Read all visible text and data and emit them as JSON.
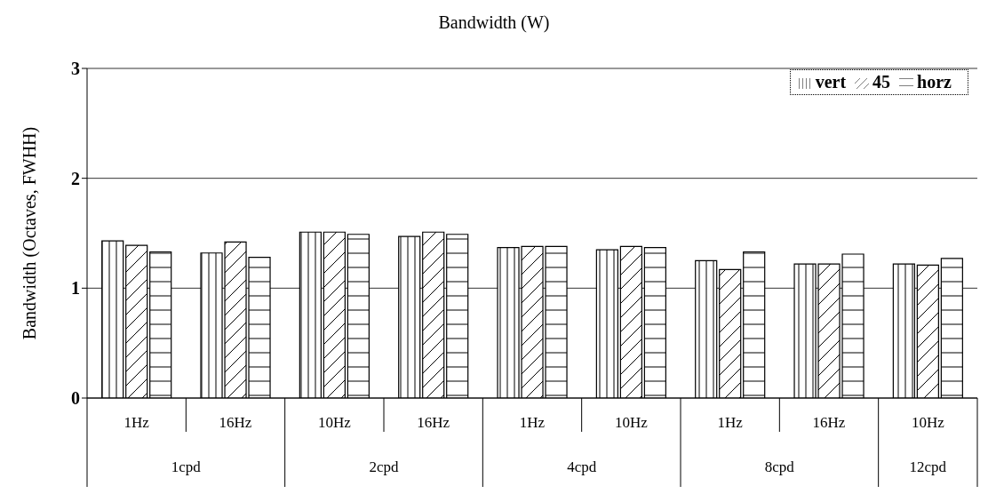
{
  "chart_data": {
    "type": "bar",
    "title": "Bandwidth (W)",
    "ylabel": "Bandwidth (Octaves, FWHH)",
    "categories": [
      "1Hz",
      "16Hz",
      "10Hz",
      "16Hz",
      "1Hz",
      "10Hz",
      "1Hz",
      "16Hz",
      "10Hz"
    ],
    "annotations": [
      "1cpd",
      "2cpd",
      "4cpd",
      "8cpd",
      "12cpd"
    ],
    "series": [
      {
        "name": "vert",
        "color": "#000000",
        "values": [
          1.43,
          1.32,
          1.51,
          1.47,
          1.37,
          1.35,
          1.25,
          1.22,
          1.22
        ]
      },
      {
        "name": "45",
        "color": "#000000",
        "values": [
          1.39,
          1.42,
          1.51,
          1.51,
          1.38,
          1.38,
          1.17,
          1.22,
          1.21
        ]
      },
      {
        "name": "horz",
        "color": "#000000",
        "values": [
          1.33,
          1.28,
          1.49,
          1.49,
          1.38,
          1.37,
          1.33,
          1.31,
          1.27
        ]
      }
    ],
    "ylim": [
      0,
      3
    ],
    "yticks": [
      0,
      1,
      2,
      3
    ],
    "grid": "y",
    "legend": "top right"
  }
}
